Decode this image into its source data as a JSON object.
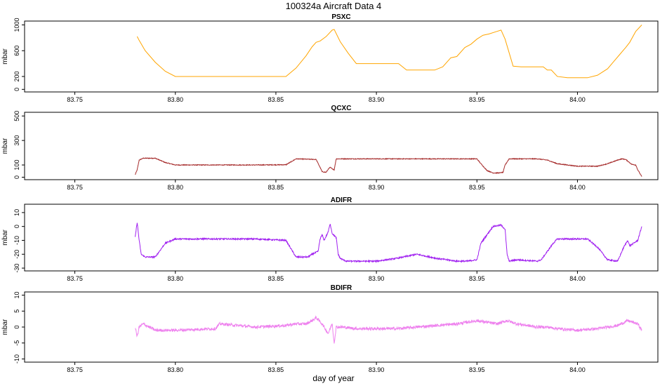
{
  "figure": {
    "title": "100324a   Aircraft Data 4",
    "xlabel": "day of year"
  },
  "chart_data": [
    {
      "type": "line",
      "title": "PSXC",
      "ylabel": "mbar",
      "color": "#FFA500",
      "xlim": [
        83.725,
        84.04
      ],
      "ylim": [
        -40,
        1060
      ],
      "xticks": [
        "83.75",
        "83.80",
        "83.85",
        "83.90",
        "83.95",
        "84.00"
      ],
      "xtick_values": [
        83.75,
        83.8,
        83.85,
        83.9,
        83.95,
        84.0
      ],
      "yticks": [
        "0",
        "200",
        "600",
        "1000"
      ],
      "ytick_values": [
        0,
        200,
        600,
        1000
      ],
      "noise": 0,
      "x": [
        83.781,
        83.782,
        83.785,
        83.79,
        83.795,
        83.8,
        83.82,
        83.84,
        83.855,
        83.86,
        83.865,
        83.868,
        83.87,
        83.872,
        83.875,
        83.878,
        83.879,
        83.882,
        83.886,
        83.89,
        83.9,
        83.905,
        83.911,
        83.915,
        83.92,
        83.925,
        83.929,
        83.933,
        83.937,
        83.94,
        83.944,
        83.947,
        83.95,
        83.953,
        83.956,
        83.96,
        83.962,
        83.964,
        83.968,
        83.972,
        83.978,
        83.983,
        83.985,
        83.987,
        83.99,
        83.995,
        84.0,
        84.005,
        84.01,
        84.015,
        84.018,
        84.021,
        84.024,
        84.026,
        84.029,
        84.032
      ],
      "y": [
        820,
        760,
        600,
        420,
        280,
        200,
        200,
        200,
        200,
        330,
        520,
        660,
        730,
        750,
        820,
        920,
        930,
        740,
        560,
        400,
        400,
        400,
        400,
        300,
        300,
        300,
        300,
        350,
        490,
        510,
        650,
        700,
        780,
        840,
        860,
        900,
        920,
        780,
        360,
        350,
        350,
        350,
        300,
        300,
        200,
        180,
        180,
        180,
        220,
        320,
        430,
        540,
        650,
        730,
        900,
        1000
      ]
    },
    {
      "type": "line",
      "title": "QCXC",
      "ylabel": "mbar",
      "color": "#A52A2A",
      "xlim": [
        83.725,
        84.04
      ],
      "ylim": [
        -20,
        530
      ],
      "xticks": [
        "83.75",
        "83.80",
        "83.85",
        "83.90",
        "83.95",
        "84.00"
      ],
      "xtick_values": [
        83.75,
        83.8,
        83.85,
        83.9,
        83.95,
        84.0
      ],
      "yticks": [
        "0",
        "100",
        "300",
        "500"
      ],
      "ytick_values": [
        0,
        100,
        300,
        500
      ],
      "noise": 3,
      "x": [
        83.78,
        83.781,
        83.782,
        83.784,
        83.79,
        83.795,
        83.8,
        83.82,
        83.84,
        83.855,
        83.858,
        83.86,
        83.87,
        83.872,
        83.873,
        83.875,
        83.876,
        83.877,
        83.879,
        83.88,
        83.9,
        83.92,
        83.93,
        83.945,
        83.95,
        83.952,
        83.955,
        83.958,
        83.961,
        83.963,
        83.964,
        83.966,
        83.975,
        83.98,
        83.985,
        83.99,
        84.0,
        84.005,
        84.01,
        84.015,
        84.02,
        84.022,
        84.024,
        84.027,
        84.029,
        84.03,
        84.032
      ],
      "y": [
        20,
        60,
        140,
        155,
        155,
        120,
        100,
        100,
        100,
        102,
        130,
        150,
        145,
        80,
        45,
        40,
        65,
        80,
        60,
        150,
        150,
        150,
        150,
        150,
        150,
        110,
        55,
        35,
        35,
        40,
        100,
        150,
        150,
        150,
        140,
        110,
        90,
        90,
        90,
        110,
        140,
        150,
        145,
        105,
        100,
        60,
        5
      ]
    },
    {
      "type": "line",
      "title": "ADIFR",
      "ylabel": "mbar",
      "color": "#A020F0",
      "xlim": [
        83.725,
        84.04
      ],
      "ylim": [
        -32,
        16
      ],
      "xticks": [
        "83.75",
        "83.80",
        "83.85",
        "83.90",
        "83.95",
        "84.00"
      ],
      "xtick_values": [
        83.75,
        83.8,
        83.85,
        83.9,
        83.95,
        84.0
      ],
      "yticks": [
        "-30",
        "-20",
        "-10",
        "0",
        "10"
      ],
      "ytick_values": [
        -30,
        -20,
        -10,
        0,
        10
      ],
      "noise": 0.5,
      "x": [
        83.78,
        83.781,
        83.782,
        83.783,
        83.785,
        83.79,
        83.795,
        83.8,
        83.82,
        83.84,
        83.855,
        83.86,
        83.866,
        83.868,
        83.871,
        83.872,
        83.873,
        83.874,
        83.876,
        83.877,
        83.878,
        83.88,
        83.881,
        83.882,
        83.885,
        83.9,
        83.91,
        83.92,
        83.93,
        83.94,
        83.945,
        83.95,
        83.952,
        83.955,
        83.958,
        83.962,
        83.964,
        83.965,
        83.966,
        83.97,
        83.98,
        83.982,
        83.985,
        83.988,
        83.99,
        84.0,
        84.005,
        84.01,
        84.015,
        84.02,
        84.023,
        84.025,
        84.026,
        84.028,
        84.03,
        84.031,
        84.032
      ],
      "y": [
        -8,
        3,
        -10,
        -20,
        -22,
        -22,
        -12,
        -9,
        -9,
        -9,
        -10,
        -22,
        -22,
        -20,
        -18,
        -9,
        -6,
        -10,
        -4,
        2,
        -5,
        -8,
        -20,
        -23,
        -25,
        -25,
        -23,
        -20,
        -23,
        -25,
        -25,
        -24,
        -12,
        -6,
        0,
        1,
        -2,
        -20,
        -25,
        -24,
        -25,
        -24,
        -18,
        -12,
        -9,
        -9,
        -9,
        -15,
        -24,
        -25,
        -15,
        -10,
        -14,
        -12,
        -10,
        -5,
        0
      ]
    },
    {
      "type": "line",
      "title": "BDIFR",
      "ylabel": "mbar",
      "color": "#EE82EE",
      "xlim": [
        83.725,
        84.04
      ],
      "ylim": [
        -11,
        11
      ],
      "xticks": [
        "83.75",
        "83.80",
        "83.85",
        "83.90",
        "83.95",
        "84.00"
      ],
      "xtick_values": [
        83.75,
        83.8,
        83.85,
        83.9,
        83.95,
        84.0
      ],
      "yticks": [
        "-10",
        "-5",
        "0",
        "5",
        "10"
      ],
      "ytick_values": [
        -10,
        -5,
        0,
        5,
        10
      ],
      "noise": 0.45,
      "x": [
        83.78,
        83.781,
        83.782,
        83.784,
        83.79,
        83.8,
        83.82,
        83.822,
        83.84,
        83.855,
        83.86,
        83.865,
        83.868,
        83.87,
        83.873,
        83.876,
        83.878,
        83.879,
        83.88,
        83.883,
        83.89,
        83.9,
        83.91,
        83.92,
        83.93,
        83.94,
        83.945,
        83.95,
        83.955,
        83.96,
        83.965,
        83.97,
        83.975,
        83.98,
        83.985,
        83.99,
        84.0,
        84.01,
        84.015,
        84.02,
        84.025,
        84.03,
        84.032
      ],
      "y": [
        0,
        -3,
        0,
        1,
        -1,
        -1,
        -0.5,
        1,
        0,
        0.5,
        1,
        1,
        2,
        3,
        1,
        -2,
        1,
        -5,
        0,
        0,
        -0.5,
        -0.5,
        -0.5,
        0,
        0.5,
        1,
        1.5,
        2,
        1.5,
        1,
        2,
        1,
        0.5,
        0,
        0,
        -0.5,
        -1,
        -0.5,
        0,
        0.5,
        2,
        1,
        -1
      ]
    }
  ]
}
